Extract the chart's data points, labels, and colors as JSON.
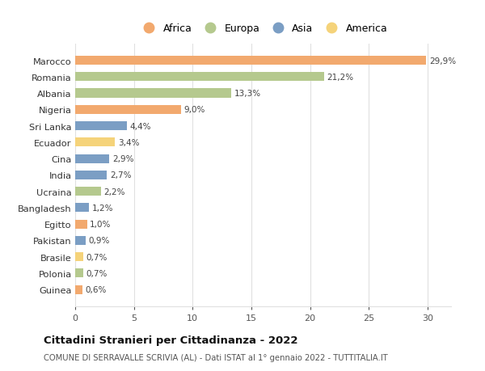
{
  "countries": [
    "Marocco",
    "Romania",
    "Albania",
    "Nigeria",
    "Sri Lanka",
    "Ecuador",
    "Cina",
    "India",
    "Ucraina",
    "Bangladesh",
    "Egitto",
    "Pakistan",
    "Brasile",
    "Polonia",
    "Guinea"
  ],
  "values": [
    29.9,
    21.2,
    13.3,
    9.0,
    4.4,
    3.4,
    2.9,
    2.7,
    2.2,
    1.2,
    1.0,
    0.9,
    0.7,
    0.7,
    0.6
  ],
  "labels": [
    "29,9%",
    "21,2%",
    "13,3%",
    "9,0%",
    "4,4%",
    "3,4%",
    "2,9%",
    "2,7%",
    "2,2%",
    "1,2%",
    "1,0%",
    "0,9%",
    "0,7%",
    "0,7%",
    "0,6%"
  ],
  "continent": [
    "Africa",
    "Europa",
    "Europa",
    "Africa",
    "Asia",
    "America",
    "Asia",
    "Asia",
    "Europa",
    "Asia",
    "Africa",
    "Asia",
    "America",
    "Europa",
    "Africa"
  ],
  "colors": {
    "Africa": "#F2A96E",
    "Europa": "#B5C98E",
    "Asia": "#7B9EC4",
    "America": "#F5D37A"
  },
  "xlim": [
    0,
    32
  ],
  "xticks": [
    0,
    5,
    10,
    15,
    20,
    25,
    30
  ],
  "title": "Cittadini Stranieri per Cittadinanza - 2022",
  "subtitle": "COMUNE DI SERRAVALLE SCRIVIA (AL) - Dati ISTAT al 1° gennaio 2022 - TUTTITALIA.IT",
  "background_color": "#ffffff",
  "grid_color": "#e0e0e0",
  "legend_order": [
    "Africa",
    "Europa",
    "Asia",
    "America"
  ]
}
